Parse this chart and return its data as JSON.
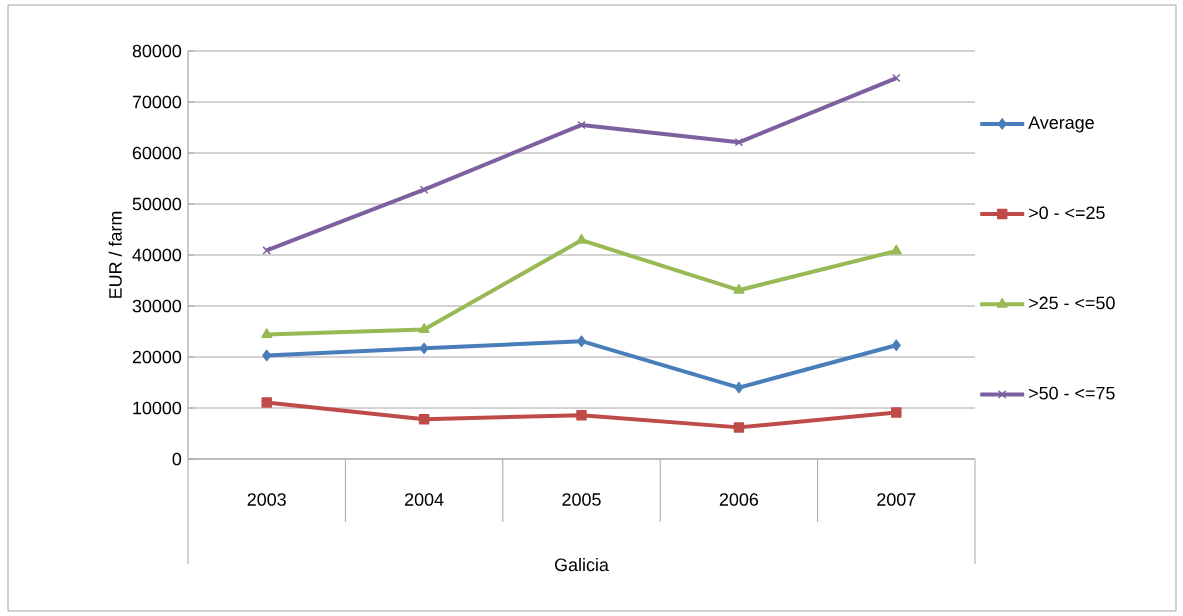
{
  "chart_data": {
    "type": "line",
    "xlabel": "Galicia",
    "ylabel": "EUR / farm",
    "categories": [
      "2003",
      "2004",
      "2005",
      "2006",
      "2007"
    ],
    "series": [
      {
        "name": "Average",
        "color": "#4a7ebb",
        "marker": "diamond",
        "values": [
          20300,
          21700,
          23100,
          14000,
          22300
        ]
      },
      {
        "name": ">0 - <=25",
        "color": "#be4b48",
        "marker": "square",
        "values": [
          11100,
          7800,
          8600,
          6200,
          9100
        ]
      },
      {
        "name": ">25 - <=50",
        "color": "#98b954",
        "marker": "triangle",
        "values": [
          24400,
          25400,
          42900,
          33100,
          40800
        ]
      },
      {
        "name": ">50 - <=75",
        "color": "#7d60a0",
        "marker": "cross",
        "values": [
          40900,
          52800,
          65500,
          62100,
          74700
        ]
      }
    ],
    "ylim": [
      0,
      80000
    ],
    "yticks": [
      0,
      10000,
      20000,
      30000,
      40000,
      50000,
      60000,
      70000,
      80000
    ],
    "grid": "y",
    "legend": "right"
  }
}
